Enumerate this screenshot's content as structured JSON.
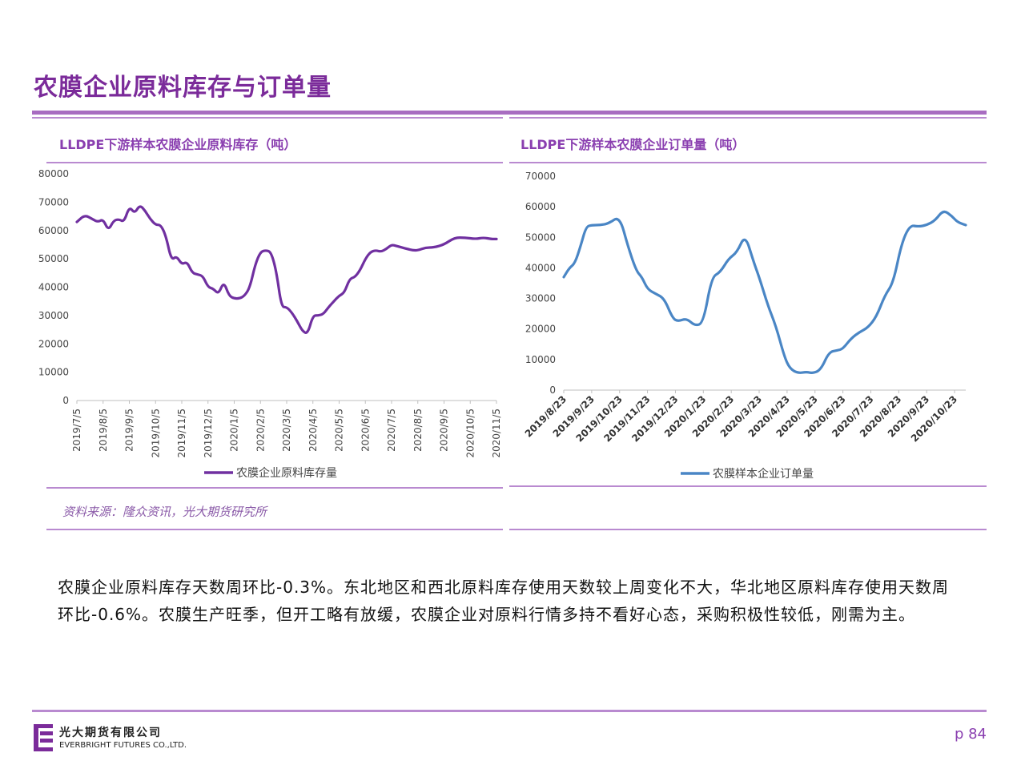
{
  "page": {
    "title": "农膜企业原料库存与订单量",
    "source": "资料来源：隆众资讯，光大期货研究所",
    "body": "农膜企业原料库存天数周环比-0.3%。东北地区和西北原料库存使用天数较上周变化不大，华北地区原料库存使用天数周环比-0.6%。农膜生产旺季，但开工略有放缓，农膜企业对原料行情多持不看好心态，采购积极性较低，刚需为主。",
    "company_cn": "光大期货有限公司",
    "company_en": "EVERBRIGHT FUTURES CO.,LTD.",
    "page_number": "p 84"
  },
  "colors": {
    "brand": "#7b2b9a",
    "rule": "#b98ad0",
    "left_series": "#7030a0",
    "right_series": "#4a86c5"
  },
  "chart_data": [
    {
      "type": "line",
      "title": "LLDPE下游样本农膜企业原料库存（吨）",
      "xlabel": "",
      "ylabel": "",
      "ylim": [
        0,
        80000
      ],
      "yticks": [
        0,
        10000,
        20000,
        30000,
        40000,
        50000,
        60000,
        70000,
        80000
      ],
      "xticks": [
        "2019/7/5",
        "2019/8/5",
        "2019/9/5",
        "2019/10/5",
        "2019/11/5",
        "2019/12/5",
        "2020/1/5",
        "2020/2/5",
        "2020/3/5",
        "2020/4/5",
        "2020/5/5",
        "2020/6/5",
        "2020/7/5",
        "2020/8/5",
        "2020/9/5",
        "2020/10/5",
        "2020/11/5"
      ],
      "grid": false,
      "legend": "bottom",
      "series": [
        {
          "name": "农膜企业原料库存量",
          "x": [
            0,
            0.3,
            0.6,
            0.8,
            1.0,
            1.2,
            1.4,
            1.6,
            1.8,
            2.0,
            2.2,
            2.4,
            2.6,
            2.8,
            3.0,
            3.2,
            3.4,
            3.6,
            3.8,
            4.0,
            4.2,
            4.4,
            4.6,
            4.8,
            5.0,
            5.2,
            5.4,
            5.6,
            5.8,
            6.0,
            6.2,
            6.4,
            6.6,
            6.8,
            7.0,
            7.2,
            7.4,
            7.6,
            7.8,
            8.0,
            8.2,
            8.4,
            8.6,
            8.8,
            9.0,
            9.2,
            9.4,
            9.6,
            9.8,
            10.0,
            10.2,
            10.4,
            10.6,
            10.8,
            11.0,
            11.2,
            11.4,
            11.6,
            11.8,
            12.0,
            12.2,
            12.4,
            12.6,
            12.8,
            13.0,
            13.3,
            13.6,
            14.0,
            14.4,
            14.8,
            15.2,
            15.5,
            15.8,
            16.0
          ],
          "y": [
            63000,
            65500,
            64000,
            63000,
            64000,
            60000,
            63500,
            64000,
            63000,
            68500,
            66000,
            69000,
            67000,
            64000,
            62000,
            62000,
            58000,
            49500,
            51000,
            48000,
            49000,
            45000,
            44500,
            44000,
            40000,
            39500,
            37500,
            42000,
            37000,
            36000,
            36000,
            37000,
            40000,
            48000,
            52500,
            53000,
            52500,
            46000,
            33000,
            33000,
            31000,
            28000,
            24500,
            23500,
            30000,
            30000,
            30500,
            33000,
            35000,
            37000,
            38000,
            43000,
            43500,
            46000,
            50000,
            52500,
            53000,
            52500,
            53500,
            55000,
            54500,
            54000,
            53500,
            53000,
            53000,
            54000,
            54000,
            55000,
            57500,
            57500,
            57000,
            57500,
            57000,
            57000
          ]
        }
      ]
    },
    {
      "type": "line",
      "title": "LLDPE下游样本农膜企业订单量（吨）",
      "xlabel": "",
      "ylabel": "",
      "ylim": [
        0,
        70000
      ],
      "yticks": [
        0,
        10000,
        20000,
        30000,
        40000,
        50000,
        60000,
        70000
      ],
      "xticks": [
        "2019/8/23",
        "2019/9/23",
        "2019/10/23",
        "2019/11/23",
        "2019/12/23",
        "2020/1/23",
        "2020/2/23",
        "2020/3/23",
        "2020/4/23",
        "2020/5/23",
        "2020/6/23",
        "2020/7/23",
        "2020/8/23",
        "2020/9/23",
        "2020/10/23"
      ],
      "grid": false,
      "legend": "bottom",
      "series": [
        {
          "name": "农膜样本企业订单量",
          "x": [
            0,
            0.2,
            0.4,
            0.6,
            0.8,
            1.0,
            1.3,
            1.6,
            2.0,
            2.3,
            2.6,
            2.8,
            3.0,
            3.3,
            3.6,
            3.9,
            4.1,
            4.4,
            4.7,
            5.0,
            5.3,
            5.6,
            5.9,
            6.2,
            6.5,
            6.8,
            7.0,
            7.3,
            7.6,
            7.9,
            8.1,
            8.4,
            8.7,
            8.9,
            9.2,
            9.5,
            9.8,
            10.0,
            10.3,
            10.6,
            10.9,
            11.2,
            11.5,
            11.8,
            12.1,
            12.4,
            12.7,
            13.0,
            13.3,
            13.6,
            13.9,
            14.1,
            14.4
          ],
          "y": [
            37000,
            40000,
            41500,
            47000,
            53500,
            54000,
            54000,
            54500,
            57000,
            47000,
            39000,
            37000,
            33000,
            31500,
            30000,
            23500,
            22500,
            23500,
            21000,
            22000,
            37000,
            38500,
            43000,
            45000,
            51000,
            42000,
            37000,
            28000,
            21000,
            11000,
            7000,
            5500,
            6000,
            5500,
            6500,
            12500,
            13000,
            13500,
            17000,
            19000,
            20500,
            24000,
            31000,
            35000,
            48000,
            54000,
            53500,
            54000,
            55500,
            59000,
            57000,
            55000,
            54000
          ]
        }
      ]
    }
  ]
}
